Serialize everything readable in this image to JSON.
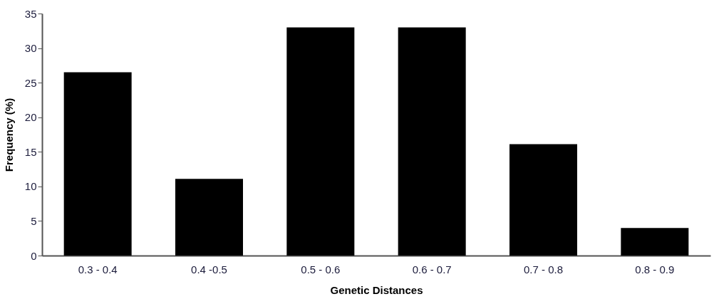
{
  "chart_data": {
    "type": "bar",
    "xlabel": "Genetic Distances",
    "ylabel": "Frequency (%)",
    "categories": [
      "0.3 - 0.4",
      "0.4 -0.5",
      "0.5 - 0.6",
      "0.6 - 0.7",
      "0.7 - 0.8",
      "0.8 - 0.9"
    ],
    "values": [
      26.5,
      11.1,
      33,
      33,
      16.1,
      4
    ],
    "color": "#000000",
    "ylim": [
      0,
      35
    ],
    "yticks": [
      0,
      5,
      10,
      15,
      20,
      25,
      30,
      35
    ],
    "grid": false
  }
}
